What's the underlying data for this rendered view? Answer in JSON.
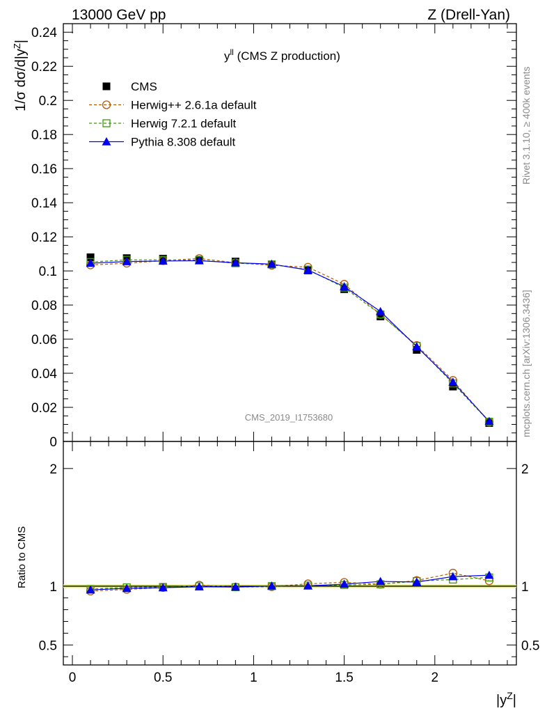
{
  "header": {
    "left": "13000 GeV pp",
    "right": "Z (Drell-Yan)"
  },
  "side_labels": {
    "rivet": "Rivet 3.1.10, ≥ 400k events",
    "mcplots": "mcplots.cern.ch [arXiv:1306.3436]"
  },
  "watermark": "CMS_2019_I1753680",
  "colors": {
    "cms": "#000000",
    "herwigpp": "#b35900",
    "herwig7": "#3a9a00",
    "pythia": "#0000ee",
    "band": "#e8f26a"
  },
  "chart_data": [
    {
      "type": "line",
      "title": "y^ll (CMS Z production)",
      "ylabel": "1/σ dσ/d|y^Z|",
      "xlabel": "|y^Z|",
      "xlim": [
        -0.05,
        2.45
      ],
      "ylim": [
        0,
        0.245
      ],
      "x_ticks": [
        0,
        0.5,
        1,
        1.5,
        2
      ],
      "x_tick_labels": [
        "0",
        "0.5",
        "1",
        "1.5",
        "2"
      ],
      "y_ticks": [
        0,
        0.02,
        0.04,
        0.06,
        0.08,
        0.1,
        0.12,
        0.14,
        0.16,
        0.18,
        0.2,
        0.22,
        0.24
      ],
      "y_tick_labels": [
        "0",
        "0.02",
        "0.04",
        "0.06",
        "0.08",
        "0.1",
        "0.12",
        "0.14",
        "0.16",
        "0.18",
        "0.2",
        "0.22",
        "0.24"
      ],
      "legend_position": "top-left",
      "x": [
        0.1,
        0.3,
        0.5,
        0.7,
        0.9,
        1.1,
        1.3,
        1.5,
        1.7,
        1.9,
        2.1,
        2.3
      ],
      "series": [
        {
          "name": "CMS",
          "marker": "filled-square",
          "values": [
            0.108,
            0.1075,
            0.1072,
            0.1065,
            0.1055,
            0.1038,
            0.1003,
            0.0893,
            0.0733,
            0.0537,
            0.0322,
            0.0108
          ]
        },
        {
          "name": "Herwig++ 2.6.1a default",
          "marker": "open-circle",
          "line": "dashed",
          "values": [
            0.1035,
            0.1045,
            0.106,
            0.1073,
            0.1048,
            0.1033,
            0.1022,
            0.0922,
            0.0745,
            0.0563,
            0.0358,
            0.0113
          ]
        },
        {
          "name": "Herwig 7.2.1 default",
          "marker": "open-square",
          "line": "dashed",
          "values": [
            0.1052,
            0.1065,
            0.1065,
            0.1063,
            0.1045,
            0.1038,
            0.1008,
            0.0902,
            0.0745,
            0.056,
            0.034,
            0.0116
          ]
        },
        {
          "name": "Pythia 8.308 default",
          "marker": "filled-triangle",
          "line": "solid",
          "values": [
            0.1045,
            0.1055,
            0.1058,
            0.106,
            0.1048,
            0.104,
            0.1005,
            0.0908,
            0.0762,
            0.0556,
            0.0348,
            0.0118
          ]
        }
      ]
    },
    {
      "type": "line",
      "ylabel": "Ratio to CMS",
      "xlabel": "|y^Z|",
      "xlim": [
        -0.05,
        2.45
      ],
      "ylim": [
        0.33,
        2.23
      ],
      "y_ticks": [
        0.5,
        1,
        2
      ],
      "y_tick_labels": [
        "0.5",
        "1",
        "2"
      ],
      "x": [
        0.1,
        0.3,
        0.5,
        0.7,
        0.9,
        1.1,
        1.3,
        1.5,
        1.7,
        1.9,
        2.1,
        2.3
      ],
      "reference": 1,
      "band": [
        0.985,
        1.015
      ],
      "series": [
        {
          "name": "Herwig++ 2.6.1a default",
          "values": [
            0.958,
            0.972,
            0.988,
            1.008,
            0.993,
            0.995,
            1.02,
            1.032,
            1.016,
            1.048,
            1.111,
            1.045
          ]
        },
        {
          "name": "Herwig 7.2.1 default",
          "values": [
            0.974,
            0.99,
            0.993,
            0.998,
            0.991,
            1.0,
            1.005,
            1.01,
            1.016,
            1.043,
            1.056,
            1.074
          ]
        },
        {
          "name": "Pythia 8.308 default",
          "values": [
            0.968,
            0.981,
            0.987,
            0.995,
            0.993,
            1.002,
            1.002,
            1.017,
            1.04,
            1.035,
            1.081,
            1.093
          ]
        }
      ]
    }
  ]
}
